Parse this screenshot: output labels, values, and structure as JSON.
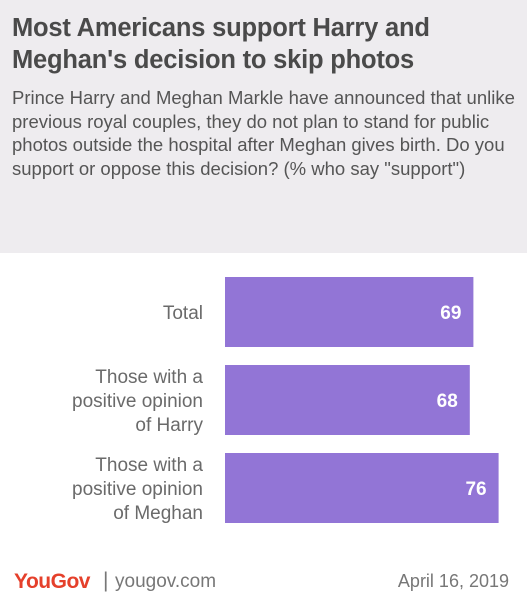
{
  "header": {
    "title": "Most Americans support Harry and Meghan's decision to skip photos",
    "subtitle": "Prince Harry and Meghan Markle have announced that unlike previous royal couples, they do not plan to stand for public photos outside the hospital after Meghan gives birth. Do you support or oppose this decision? (% who say \"support\")"
  },
  "chart_data": {
    "type": "bar",
    "orientation": "horizontal",
    "categories": [
      [
        "Total"
      ],
      [
        "Those with a",
        "positive opinion",
        "of Harry"
      ],
      [
        "Those with a",
        "positive opinion",
        "of Meghan"
      ]
    ],
    "values": [
      69,
      68,
      76
    ],
    "data_labels": [
      "69",
      "68",
      "76"
    ],
    "xlim": [
      0,
      100
    ],
    "grid": false,
    "legend": "none",
    "bar_color": "#9275d6"
  },
  "footer": {
    "brand": "YouGov",
    "separator": "|",
    "site": "yougov.com",
    "date": "April 16, 2019"
  },
  "colors": {
    "header_bg": "#eeecef",
    "brand": "#e5402b"
  }
}
